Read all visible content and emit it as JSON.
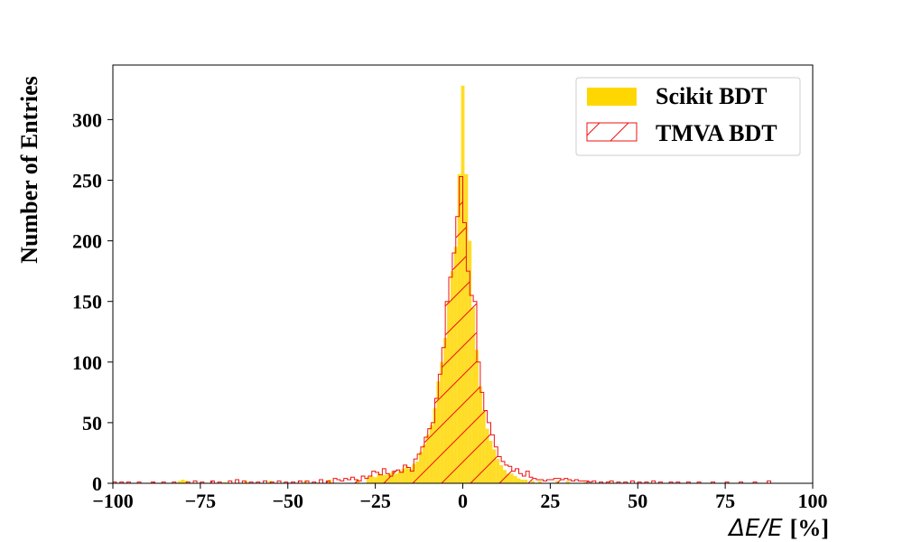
{
  "chart_data": {
    "type": "histogram",
    "xlabel": {
      "math": "ΔE/E",
      "unit": "[%]"
    },
    "ylabel": "Number of Entries",
    "xlim": [
      -100,
      100
    ],
    "ylim": [
      0,
      345
    ],
    "xticks": [
      -100,
      -75,
      -50,
      -25,
      0,
      25,
      50,
      75,
      100
    ],
    "xtick_labels": [
      "−100",
      "−75",
      "−50",
      "−25",
      "0",
      "25",
      "50",
      "75",
      "100"
    ],
    "yticks": [
      0,
      50,
      100,
      150,
      200,
      250,
      300
    ],
    "yticks_labels": [
      "0",
      "50",
      "100",
      "150",
      "200",
      "250",
      "300"
    ],
    "bin_width": 1,
    "grid": false,
    "legend_position": "top-right",
    "series": [
      {
        "name": "Scikit BDT",
        "style": "filled",
        "color": "#FFD700",
        "bins": [
          [
            -81,
            2
          ],
          [
            -80,
            3
          ],
          [
            -79,
            2
          ],
          [
            -68,
            1
          ],
          [
            -62,
            2
          ],
          [
            -55,
            2
          ],
          [
            -45,
            2
          ],
          [
            -38,
            3
          ],
          [
            -30,
            3
          ],
          [
            -27,
            5
          ],
          [
            -26,
            6
          ],
          [
            -25,
            5
          ],
          [
            -24,
            8
          ],
          [
            -23,
            7
          ],
          [
            -22,
            7
          ],
          [
            -21,
            8
          ],
          [
            -20,
            10
          ],
          [
            -19,
            8
          ],
          [
            -18,
            10
          ],
          [
            -17,
            12
          ],
          [
            -16,
            14
          ],
          [
            -15,
            12
          ],
          [
            -14,
            16
          ],
          [
            -13,
            18
          ],
          [
            -12,
            26
          ],
          [
            -11,
            32
          ],
          [
            -10,
            40
          ],
          [
            -9,
            48
          ],
          [
            -8,
            62
          ],
          [
            -7,
            84
          ],
          [
            -6,
            100
          ],
          [
            -5,
            120
          ],
          [
            -4,
            150
          ],
          [
            -3,
            175
          ],
          [
            -2,
            195
          ],
          [
            -1,
            255
          ],
          [
            0,
            328
          ],
          [
            1,
            255
          ],
          [
            2,
            200
          ],
          [
            3,
            145
          ],
          [
            4,
            110
          ],
          [
            5,
            80
          ],
          [
            6,
            60
          ],
          [
            7,
            45
          ],
          [
            8,
            35
          ],
          [
            9,
            28
          ],
          [
            10,
            20
          ],
          [
            11,
            15
          ],
          [
            12,
            11
          ],
          [
            13,
            8
          ],
          [
            14,
            8
          ],
          [
            15,
            6
          ],
          [
            16,
            4
          ],
          [
            17,
            3
          ],
          [
            18,
            3
          ],
          [
            20,
            2
          ],
          [
            22,
            2
          ],
          [
            27,
            2
          ],
          [
            30,
            2
          ],
          [
            35,
            1
          ],
          [
            42,
            1
          ]
        ]
      },
      {
        "name": "TMVA BDT",
        "style": "hatched",
        "color": "#EE1111",
        "bins": [
          [
            -100,
            2
          ],
          [
            -99,
            1
          ],
          [
            -97,
            1
          ],
          [
            -95,
            1
          ],
          [
            -92,
            1
          ],
          [
            -88,
            1
          ],
          [
            -85,
            1
          ],
          [
            -82,
            1
          ],
          [
            -78,
            1
          ],
          [
            -76,
            2
          ],
          [
            -74,
            1
          ],
          [
            -71,
            2
          ],
          [
            -69,
            1
          ],
          [
            -66,
            2
          ],
          [
            -64,
            3
          ],
          [
            -62,
            2
          ],
          [
            -60,
            1
          ],
          [
            -58,
            1
          ],
          [
            -56,
            2
          ],
          [
            -54,
            1
          ],
          [
            -52,
            2
          ],
          [
            -50,
            1
          ],
          [
            -48,
            1
          ],
          [
            -46,
            2
          ],
          [
            -44,
            2
          ],
          [
            -42,
            1
          ],
          [
            -40,
            3
          ],
          [
            -38,
            2
          ],
          [
            -36,
            4
          ],
          [
            -35,
            3
          ],
          [
            -34,
            2
          ],
          [
            -33,
            4
          ],
          [
            -32,
            3
          ],
          [
            -31,
            5
          ],
          [
            -30,
            3
          ],
          [
            -29,
            2
          ],
          [
            -28,
            6
          ],
          [
            -27,
            4
          ],
          [
            -26,
            6
          ],
          [
            -25,
            10
          ],
          [
            -24,
            9
          ],
          [
            -23,
            7
          ],
          [
            -22,
            12
          ],
          [
            -21,
            8
          ],
          [
            -20,
            6
          ],
          [
            -19,
            10
          ],
          [
            -18,
            11
          ],
          [
            -17,
            9
          ],
          [
            -16,
            15
          ],
          [
            -15,
            13
          ],
          [
            -14,
            10
          ],
          [
            -13,
            20
          ],
          [
            -12,
            24
          ],
          [
            -11,
            30
          ],
          [
            -10,
            38
          ],
          [
            -9,
            45
          ],
          [
            -8,
            50
          ],
          [
            -7,
            70
          ],
          [
            -6,
            90
          ],
          [
            -5,
            112
          ],
          [
            -4,
            150
          ],
          [
            -3,
            170
          ],
          [
            -2,
            190
          ],
          [
            -1,
            220
          ],
          [
            0,
            253
          ],
          [
            1,
            215
          ],
          [
            2,
            175
          ],
          [
            3,
            155
          ],
          [
            4,
            150
          ],
          [
            5,
            100
          ],
          [
            6,
            75
          ],
          [
            7,
            60
          ],
          [
            8,
            50
          ],
          [
            9,
            40
          ],
          [
            10,
            30
          ],
          [
            11,
            22
          ],
          [
            12,
            18
          ],
          [
            13,
            15
          ],
          [
            14,
            14
          ],
          [
            15,
            10
          ],
          [
            16,
            12
          ],
          [
            17,
            8
          ],
          [
            18,
            6
          ],
          [
            19,
            10
          ],
          [
            20,
            5
          ],
          [
            21,
            4
          ],
          [
            22,
            3
          ],
          [
            23,
            3
          ],
          [
            24,
            2
          ],
          [
            25,
            3
          ],
          [
            26,
            3
          ],
          [
            27,
            4
          ],
          [
            28,
            4
          ],
          [
            29,
            3
          ],
          [
            30,
            4
          ],
          [
            31,
            3
          ],
          [
            32,
            2
          ],
          [
            33,
            3
          ],
          [
            34,
            2
          ],
          [
            35,
            2
          ],
          [
            36,
            2
          ],
          [
            37,
            1
          ],
          [
            38,
            2
          ],
          [
            40,
            1
          ],
          [
            42,
            1
          ],
          [
            43,
            2
          ],
          [
            45,
            1
          ],
          [
            47,
            1
          ],
          [
            49,
            2
          ],
          [
            51,
            1
          ],
          [
            53,
            1
          ],
          [
            55,
            2
          ],
          [
            57,
            1
          ],
          [
            60,
            1
          ],
          [
            62,
            1
          ],
          [
            65,
            1
          ],
          [
            68,
            1
          ],
          [
            72,
            1
          ],
          [
            76,
            1
          ],
          [
            80,
            1
          ],
          [
            84,
            1
          ],
          [
            88,
            2
          ]
        ]
      }
    ]
  }
}
